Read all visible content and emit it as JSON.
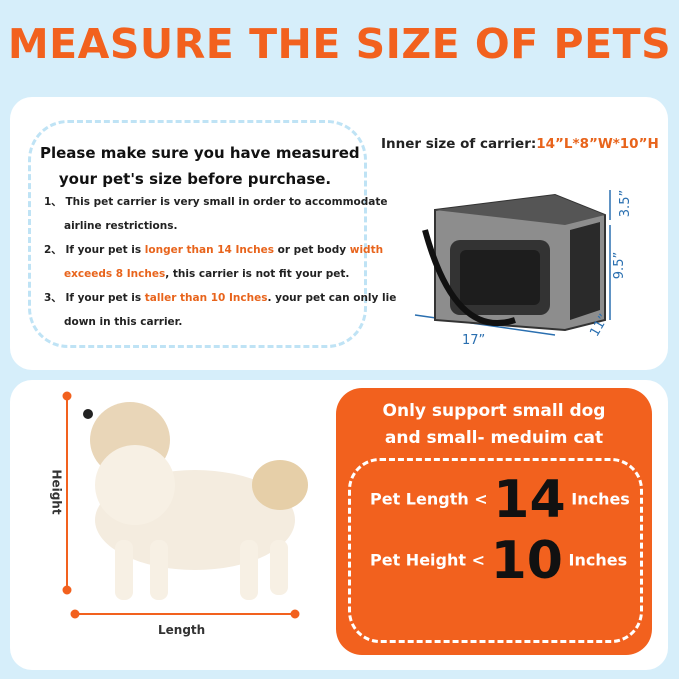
{
  "title": "MEASURE THE SIZE OF PETS",
  "notice": {
    "heading": [
      "Please make sure you have measured",
      "your pet's size before purchase."
    ],
    "items": [
      [
        "1、 This pet carrier is very small in order  to accommodate",
        "airline restrictions."
      ],
      [
        "2、 If your pet is ",
        "longer than 14 Inches",
        " or pet body ",
        "width",
        "exceeds 8 Inches",
        ", this carrier is not fit your pet."
      ],
      [
        "3、  If your pet is ",
        "taller than 10 Inches",
        ". your pet can only lie",
        "down in this carrier."
      ]
    ]
  },
  "carrier": {
    "label": "Inner size of carrier:",
    "size": "14”L*8”W*10”H",
    "dims": {
      "top": "3.5”",
      "height": "9.5”",
      "depth": "11”",
      "length": "17”"
    }
  },
  "dog": {
    "height_label": "Height",
    "length_label": "Length"
  },
  "limits": {
    "heading": [
      "Only support small dog",
      "and small- meduim cat"
    ],
    "rows": [
      {
        "label": "Pet Length <",
        "value": "14",
        "unit": "Inches"
      },
      {
        "label": "Pet Height <",
        "value": "10",
        "unit": "Inches"
      }
    ]
  }
}
